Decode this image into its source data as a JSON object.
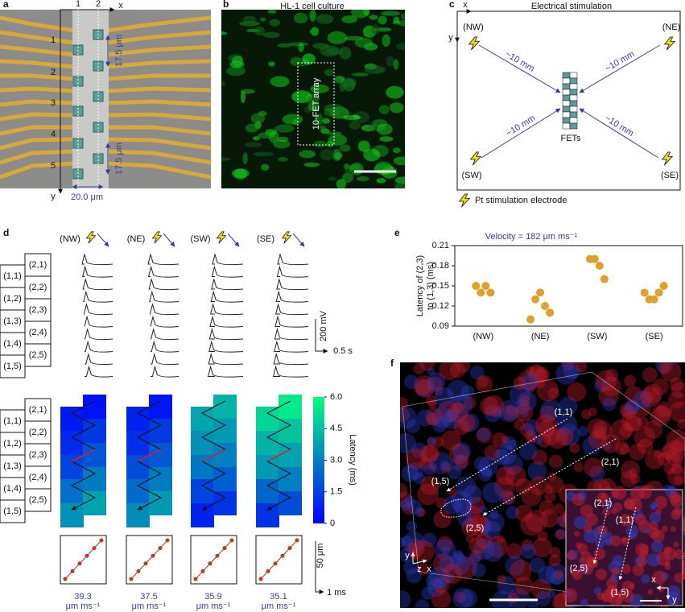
{
  "panel_labels": [
    "a",
    "b",
    "c",
    "d",
    "e",
    "f"
  ],
  "a": {
    "axis_x": "x",
    "axis_y": "y",
    "columns": [
      "1",
      "2"
    ],
    "rows": [
      "1",
      "2",
      "3",
      "4",
      "5"
    ],
    "pitch_top": "17.5 μm",
    "pitch_bottom": "17.5 μm",
    "width": "20.0 μm"
  },
  "b": {
    "title": "HL-1 cell culture",
    "array": "10-FET array"
  },
  "c": {
    "title": "Electrical stimulation",
    "axis_x": "x",
    "axis_y": "y",
    "corners": [
      "(NW)",
      "(NE)",
      "(SW)",
      "(SE)"
    ],
    "distances": [
      "~10 mm",
      "~10 mm",
      "~10 mm",
      "~10 mm"
    ],
    "fets": "FETs",
    "legend": "Pt stimulation electrode"
  },
  "d": {
    "conditions": [
      "(NW)",
      "(NE)",
      "(SW)",
      "(SE)"
    ],
    "devices_col1": [
      "(1,1)",
      "(1,2)",
      "(1,3)",
      "(1,4)",
      "(1,5)"
    ],
    "devices_col2": [
      "(2,1)",
      "(2,2)",
      "(2,3)",
      "(2,4)",
      "(2,5)"
    ],
    "voltage_scale": "200 mV",
    "time_scale": "0.5 s",
    "latency_maps": [
      [
        0.6,
        0.4,
        1.0,
        1.3,
        1.6,
        2.0,
        2.6,
        2.9,
        3.4,
        3.8
      ],
      [
        0.8,
        0.5,
        1.1,
        1.4,
        1.8,
        2.1,
        2.5,
        2.9,
        3.3,
        3.6
      ],
      [
        3.9,
        4.2,
        3.4,
        3.6,
        2.8,
        3.0,
        1.6,
        2.2,
        0.8,
        1.2
      ],
      [
        5.0,
        5.5,
        4.2,
        4.6,
        3.6,
        3.8,
        2.4,
        3.0,
        1.2,
        1.8
      ]
    ],
    "colorbar_label": "Latency (ms)",
    "colorbar_lim": [
      0,
      6
    ],
    "colorbar_ticks": [
      {
        "value": 0,
        "label": "0"
      },
      {
        "value": 1.5,
        "label": "1.5"
      },
      {
        "value": 3,
        "label": "3.0"
      },
      {
        "value": 4.5,
        "label": "4.5"
      },
      {
        "value": 6,
        "label": "6.0"
      }
    ],
    "distance_scale": "50 μm",
    "latency_scale": "1 ms",
    "velocities": [
      "39.3",
      "37.5",
      "35.9",
      "35.1"
    ],
    "velocity_unit": "μm ms⁻¹"
  },
  "chart_data": {
    "type": "scatter",
    "title": "Velocity = 182 μm ms⁻¹",
    "ylabel": [
      "Latency of (2,3)",
      "to (1,3) (ms)"
    ],
    "categories": [
      "(NW)",
      "(NE)",
      "(SW)",
      "(SE)"
    ],
    "values": [
      [
        0.15,
        0.14,
        0.15,
        0.14
      ],
      [
        0.1,
        0.13,
        0.14,
        0.12,
        0.11
      ],
      [
        0.19,
        0.19,
        0.18,
        0.16
      ],
      [
        0.14,
        0.13,
        0.13,
        0.14,
        0.15
      ]
    ],
    "color": "#e0a030",
    "ylim": [
      0.09,
      0.21
    ],
    "yticks": [
      0.09,
      0.12,
      0.15,
      0.18,
      0.21
    ]
  },
  "f": {
    "labels": [
      "(1,1)",
      "(2,1)",
      "(1,5)",
      "(2,5)"
    ],
    "inset_labels": [
      "(2,1)",
      "(1,1)",
      "(2,5)",
      "(1,5)"
    ],
    "axes": [
      "y",
      "z",
      "x"
    ],
    "inset_axes": [
      "x",
      "y"
    ]
  }
}
